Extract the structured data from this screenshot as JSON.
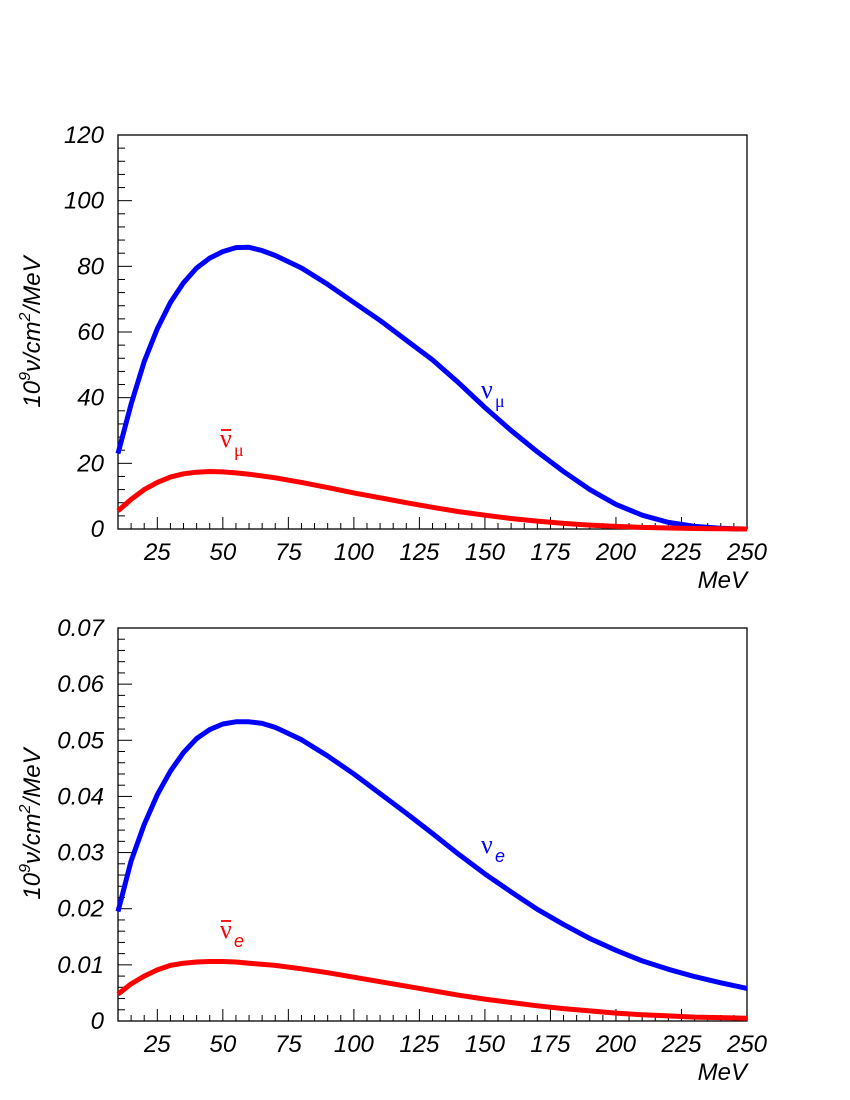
{
  "chart_data": [
    {
      "type": "line",
      "ylabel": {
        "prefix": "10",
        "exp1": "9",
        "mid": "ν/cm",
        "exp2": "2",
        "suffix": "/MeV"
      },
      "xlabel": "MeV",
      "xlim": [
        10,
        250
      ],
      "ylim": [
        0,
        120
      ],
      "x_ticks": [
        "25",
        "50",
        "75",
        "100",
        "125",
        "150",
        "175",
        "200",
        "225",
        "250"
      ],
      "y_ticks": [
        "0",
        "20",
        "40",
        "60",
        "80",
        "100",
        "120"
      ],
      "series": [
        {
          "name": "ν_μ",
          "label": {
            "base": "ν",
            "sub": "μ",
            "bar": false
          },
          "color": "#0000ff",
          "x": [
            10,
            15,
            20,
            25,
            30,
            35,
            40,
            45,
            50,
            55,
            60,
            65,
            70,
            80,
            90,
            100,
            110,
            120,
            130,
            140,
            150,
            160,
            170,
            180,
            190,
            200,
            210,
            220,
            230,
            240,
            245,
            250
          ],
          "y": [
            23,
            38,
            51,
            61,
            69,
            75,
            79.5,
            82.5,
            84.5,
            85.7,
            85.8,
            84.8,
            83.3,
            79.5,
            74.5,
            69,
            63.5,
            57.5,
            51.5,
            44.5,
            37,
            30,
            23.5,
            17.5,
            12,
            7.5,
            4.2,
            2,
            0.8,
            0.2,
            0.05,
            0
          ]
        },
        {
          "name": "ν̄_μ",
          "label": {
            "base": "ν",
            "sub": "μ",
            "bar": true
          },
          "color": "#ff0000",
          "x": [
            10,
            15,
            20,
            25,
            30,
            35,
            40,
            45,
            50,
            55,
            60,
            70,
            80,
            90,
            100,
            110,
            120,
            130,
            140,
            150,
            160,
            170,
            180,
            190,
            200,
            210,
            220,
            230,
            240,
            250
          ],
          "y": [
            5.5,
            9,
            12,
            14.2,
            15.8,
            16.8,
            17.3,
            17.5,
            17.4,
            17.1,
            16.7,
            15.6,
            14.2,
            12.6,
            11,
            9.5,
            8.0,
            6.6,
            5.3,
            4.2,
            3.2,
            2.4,
            1.7,
            1.2,
            0.8,
            0.5,
            0.3,
            0.15,
            0.05,
            0
          ]
        }
      ]
    },
    {
      "type": "line",
      "ylabel": {
        "prefix": "10",
        "exp1": "9",
        "mid": "ν/cm",
        "exp2": "2",
        "suffix": "/MeV"
      },
      "xlabel": "MeV",
      "xlim": [
        10,
        250
      ],
      "ylim": [
        0,
        0.07
      ],
      "x_ticks": [
        "25",
        "50",
        "75",
        "100",
        "125",
        "150",
        "175",
        "200",
        "225",
        "250"
      ],
      "y_ticks": [
        "0",
        "0.01",
        "0.02",
        "0.03",
        "0.04",
        "0.05",
        "0.06",
        "0.07"
      ],
      "series": [
        {
          "name": "ν_e",
          "label": {
            "base": "ν",
            "sub": "e",
            "bar": false
          },
          "color": "#0000ff",
          "x": [
            10,
            15,
            20,
            25,
            30,
            35,
            40,
            45,
            50,
            55,
            60,
            65,
            70,
            80,
            90,
            100,
            110,
            120,
            130,
            140,
            150,
            160,
            170,
            180,
            190,
            200,
            210,
            220,
            230,
            240,
            250
          ],
          "y": [
            0.0195,
            0.0285,
            0.035,
            0.0403,
            0.0445,
            0.0478,
            0.0503,
            0.0519,
            0.0529,
            0.0533,
            0.0533,
            0.053,
            0.0523,
            0.0501,
            0.0472,
            0.044,
            0.0405,
            0.037,
            0.0334,
            0.0297,
            0.0262,
            0.023,
            0.0199,
            0.0172,
            0.0147,
            0.0126,
            0.0107,
            0.0092,
            0.0079,
            0.0068,
            0.0058
          ]
        },
        {
          "name": "ν̄_e",
          "label": {
            "base": "ν",
            "sub": "e",
            "bar": true
          },
          "color": "#ff0000",
          "x": [
            10,
            15,
            20,
            25,
            30,
            35,
            40,
            45,
            50,
            55,
            60,
            70,
            80,
            90,
            100,
            110,
            120,
            130,
            140,
            150,
            160,
            170,
            180,
            190,
            200,
            210,
            220,
            230,
            240,
            250
          ],
          "y": [
            0.0048,
            0.0066,
            0.008,
            0.0091,
            0.0099,
            0.0103,
            0.0105,
            0.0106,
            0.0106,
            0.0105,
            0.0103,
            0.0099,
            0.0093,
            0.0086,
            0.0078,
            0.007,
            0.0062,
            0.0054,
            0.0046,
            0.0039,
            0.0033,
            0.0027,
            0.0022,
            0.0018,
            0.0014,
            0.0011,
            0.0009,
            0.0007,
            0.0006,
            0.0005
          ]
        }
      ]
    }
  ]
}
